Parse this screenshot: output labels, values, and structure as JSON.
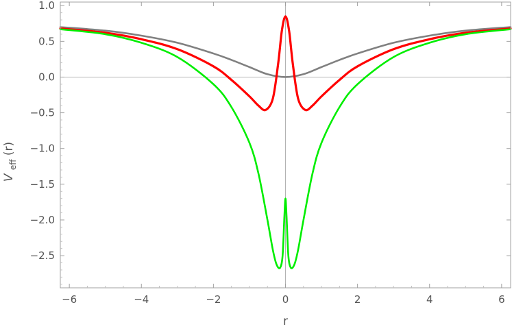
{
  "chart_data": {
    "type": "line",
    "xlabel": "r",
    "ylabel": {
      "main": "V",
      "sub": "eff",
      "suffix": "(r)"
    },
    "xlim": [
      -6.25,
      6.25
    ],
    "ylim": [
      -2.95,
      1.05
    ],
    "xticks": [
      -6,
      -4,
      -2,
      0,
      2,
      4,
      6
    ],
    "xtick_labels": [
      "−6",
      "−4",
      "−2",
      "0",
      "2",
      "4",
      "6"
    ],
    "yticks": [
      1.0,
      0.5,
      0.0,
      -0.5,
      -1.0,
      -1.5,
      -2.0,
      -2.5
    ],
    "ytick_labels": [
      "1.0",
      "0.5",
      "0.0",
      "−0.5",
      "−1.0",
      "−1.5",
      "−2.0",
      "−2.5"
    ],
    "grid": false,
    "reference_lines": {
      "y0": true,
      "x0": true
    },
    "series": [
      {
        "color": "#808080",
        "x": [
          -6.25,
          -5,
          -4,
          -3,
          -2,
          -1.5,
          -1,
          -0.5,
          0,
          0.5,
          1,
          1.5,
          2,
          3,
          4,
          5,
          6.25
        ],
        "y": [
          0.7,
          0.65,
          0.58,
          0.48,
          0.33,
          0.24,
          0.14,
          0.04,
          0.0,
          0.04,
          0.14,
          0.24,
          0.33,
          0.48,
          0.58,
          0.65,
          0.7
        ]
      },
      {
        "color": "#ff0000",
        "x": [
          -6.25,
          -5,
          -4,
          -3,
          -2,
          -1.5,
          -1,
          -0.75,
          -0.55,
          -0.35,
          -0.2,
          -0.1,
          0,
          0.1,
          0.2,
          0.35,
          0.55,
          0.75,
          1,
          1.5,
          2,
          3,
          4,
          5,
          6.25
        ],
        "y": [
          0.68,
          0.62,
          0.53,
          0.39,
          0.15,
          -0.04,
          -0.27,
          -0.4,
          -0.46,
          -0.3,
          0.2,
          0.65,
          0.85,
          0.65,
          0.2,
          -0.3,
          -0.46,
          -0.4,
          -0.27,
          -0.04,
          0.15,
          0.39,
          0.53,
          0.62,
          0.68
        ]
      },
      {
        "color": "#00ee00",
        "x": [
          -6.25,
          -5,
          -4,
          -3,
          -2,
          -1.5,
          -1,
          -0.75,
          -0.5,
          -0.35,
          -0.25,
          -0.15,
          -0.08,
          -0.03,
          0,
          0.03,
          0.08,
          0.15,
          0.25,
          0.35,
          0.5,
          0.75,
          1,
          1.5,
          2,
          3,
          4,
          5,
          6.25
        ],
        "y": [
          0.67,
          0.6,
          0.48,
          0.28,
          -0.1,
          -0.42,
          -0.92,
          -1.35,
          -2.0,
          -2.42,
          -2.62,
          -2.67,
          -2.5,
          -1.95,
          -1.7,
          -1.95,
          -2.5,
          -2.67,
          -2.62,
          -2.42,
          -2.0,
          -1.35,
          -0.92,
          -0.42,
          -0.1,
          0.28,
          0.48,
          0.6,
          0.67
        ]
      }
    ]
  }
}
